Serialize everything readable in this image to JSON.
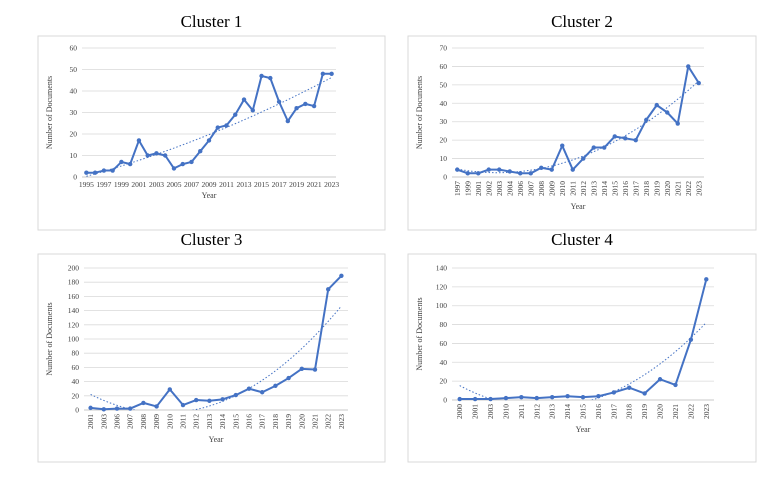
{
  "chart_data": [
    {
      "type": "line",
      "title": "Cluster 1",
      "x_label": "Year",
      "y_label": "Number of Documents",
      "categories": [
        "1995",
        null,
        "1997",
        null,
        "1999",
        null,
        "2001",
        null,
        "2003",
        null,
        "2005",
        null,
        "2007",
        null,
        "2009",
        null,
        "2011",
        null,
        "2013",
        null,
        "2015",
        null,
        "2017",
        null,
        "2019",
        null,
        "2021",
        null,
        "2023"
      ],
      "values": [
        2,
        2,
        3,
        3,
        7,
        6,
        17,
        10,
        11,
        10,
        4,
        6,
        7,
        12,
        17,
        23,
        24,
        29,
        36,
        31,
        47,
        46,
        35,
        26,
        32,
        34,
        33,
        48,
        48
      ],
      "color": "#4472c4",
      "ylim": [
        0,
        60
      ],
      "yticks": [
        0,
        10,
        20,
        30,
        40,
        50,
        60
      ],
      "grid": true,
      "trendline": "polynomial",
      "x_label_rotation": 0
    },
    {
      "type": "line",
      "title": "Cluster 2",
      "x_label": "Year",
      "y_label": "Number of Documents",
      "categories": [
        "1997",
        "1999",
        "2001",
        "2002",
        "2003",
        "2004",
        "2006",
        "2007",
        "2008",
        "2009",
        "2010",
        "2011",
        "2012",
        "2013",
        "2014",
        "2015",
        "2016",
        "2017",
        "2018",
        "2019",
        "2020",
        "2021",
        "2022",
        "2023"
      ],
      "values": [
        4,
        2,
        2,
        4,
        4,
        3,
        2,
        2,
        5,
        4,
        17,
        4,
        10,
        16,
        16,
        22,
        21,
        20,
        31,
        39,
        35,
        29,
        60,
        51
      ],
      "color": "#4472c4",
      "ylim": [
        0,
        70
      ],
      "yticks": [
        0,
        10,
        20,
        30,
        40,
        50,
        60,
        70
      ],
      "grid": true,
      "trendline": "polynomial",
      "x_label_rotation": -90
    },
    {
      "type": "line",
      "title": "Cluster 3",
      "x_label": "Year",
      "y_label": "Number of Documents",
      "categories": [
        "2001",
        "2003",
        "2006",
        "2007",
        "2008",
        "2009",
        "2010",
        "2011",
        "2012",
        "2013",
        "2014",
        "2015",
        "2016",
        "2017",
        "2018",
        "2019",
        "2020",
        "2021",
        "2022",
        "2023"
      ],
      "values": [
        3,
        1,
        2,
        2,
        10,
        5,
        29,
        7,
        14,
        13,
        15,
        21,
        30,
        25,
        34,
        45,
        58,
        57,
        170,
        189
      ],
      "color": "#4472c4",
      "ylim": [
        0,
        200
      ],
      "yticks": [
        0,
        20,
        40,
        60,
        80,
        100,
        120,
        140,
        160,
        180,
        200
      ],
      "grid": true,
      "trendline": "polynomial",
      "x_label_rotation": -90
    },
    {
      "type": "line",
      "title": "Cluster 4",
      "x_label": "Year",
      "y_label": "Number of Documents",
      "categories": [
        "2000",
        "2001",
        "2003",
        "2010",
        "2011",
        "2012",
        "2013",
        "2014",
        "2015",
        "2016",
        "2017",
        "2018",
        "2019",
        "2020",
        "2021",
        "2022",
        "2023"
      ],
      "values": [
        1,
        1,
        1,
        2,
        3,
        2,
        3,
        4,
        3,
        4,
        8,
        13,
        7,
        22,
        16,
        64,
        128
      ],
      "color": "#4472c4",
      "ylim": [
        0,
        140
      ],
      "yticks": [
        0,
        20,
        40,
        60,
        80,
        100,
        120,
        140
      ],
      "grid": true,
      "trendline": "polynomial",
      "x_label_rotation": -90
    }
  ]
}
